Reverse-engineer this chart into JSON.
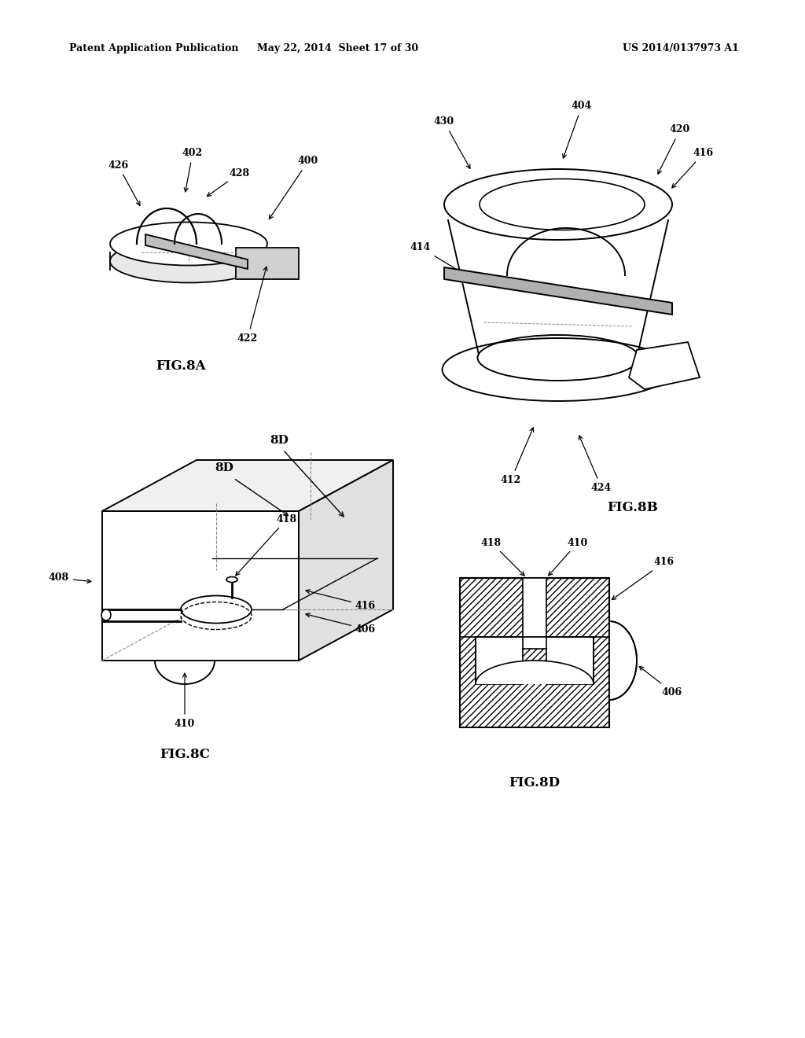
{
  "bg_color": "#ffffff",
  "header_left": "Patent Application Publication",
  "header_mid": "May 22, 2014  Sheet 17 of 30",
  "header_right": "US 2014/0137973 A1",
  "fig8a_label": "FIG.8A",
  "fig8b_label": "FIG.8B",
  "fig8c_label": "FIG.8C",
  "fig8d_label": "FIG.8D",
  "line_color": "#000000",
  "dashed_color": "#888888"
}
